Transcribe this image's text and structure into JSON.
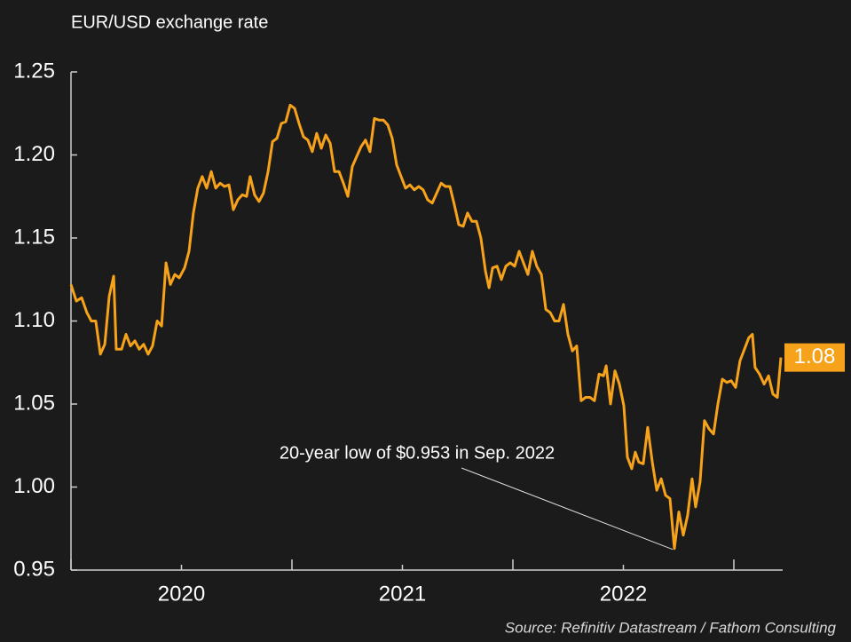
{
  "chart_data": {
    "type": "line",
    "title": "EUR/USD exchange rate",
    "source": "Source: Refinitiv Datastream / Fathom Consulting",
    "annotation": "20-year low of $0.953 in Sep. 2022",
    "end_label": "1.08",
    "color": "#f7a21b",
    "x": [
      2020,
      2020.024,
      2020.048,
      2020.072,
      2020.092,
      2020.112,
      2020.133,
      2020.153,
      2020.173,
      2020.193,
      2020.205,
      2020.229,
      2020.249,
      2020.269,
      2020.289,
      2020.309,
      2020.329,
      2020.349,
      2020.369,
      2020.39,
      2020.41,
      2020.43,
      2020.45,
      2020.47,
      2020.49,
      2020.514,
      2020.534,
      2020.554,
      2020.574,
      2020.594,
      2020.614,
      2020.635,
      2020.655,
      2020.675,
      2020.695,
      2020.715,
      2020.735,
      2020.755,
      2020.775,
      2020.795,
      2020.811,
      2020.831,
      2020.851,
      2020.871,
      2020.892,
      2020.912,
      2020.932,
      2020.952,
      2020.972,
      2020.992,
      2021.012,
      2021.032,
      2021.052,
      2021.072,
      2021.092,
      2021.112,
      2021.133,
      2021.153,
      2021.173,
      2021.193,
      2021.213,
      2021.233,
      2021.253,
      2021.273,
      2021.293,
      2021.313,
      2021.333,
      2021.353,
      2021.373,
      2021.394,
      2021.414,
      2021.434,
      2021.454,
      2021.474,
      2021.494,
      2021.514,
      2021.534,
      2021.554,
      2021.574,
      2021.594,
      2021.614,
      2021.635,
      2021.655,
      2021.675,
      2021.695,
      2021.715,
      2021.735,
      2021.755,
      2021.775,
      2021.795,
      2021.815,
      2021.835,
      2021.855,
      2021.876,
      2021.892,
      2021.908,
      2021.928,
      2021.948,
      2021.968,
      2021.988,
      2022.008,
      2022.028,
      2022.048,
      2022.068,
      2022.088,
      2022.108,
      2022.129,
      2022.149,
      2022.169,
      2022.189,
      2022.209,
      2022.229,
      2022.249,
      2022.269,
      2022.289,
      2022.309,
      2022.329,
      2022.349,
      2022.369,
      2022.39,
      2022.41,
      2022.422,
      2022.442,
      2022.462,
      2022.482,
      2022.502,
      2022.518,
      2022.538,
      2022.554,
      2022.57,
      2022.59,
      2022.61,
      2022.631,
      2022.651,
      2022.671,
      2022.691,
      2022.711,
      2022.731,
      2022.751,
      2022.771,
      2022.791,
      2022.811,
      2022.827,
      2022.847,
      2022.867,
      2022.888,
      2022.908,
      2022.928,
      2022.948,
      2022.968,
      2022.988,
      2023.008,
      2023.028,
      2023.048,
      2023.068,
      2023.084,
      2023.096,
      2023.116,
      2023.137,
      2023.157,
      2023.177,
      2023.197,
      2023.213
    ],
    "values": [
      1.122,
      1.112,
      1.114,
      1.105,
      1.1,
      1.1,
      1.08,
      1.086,
      1.115,
      1.127,
      1.083,
      1.083,
      1.092,
      1.085,
      1.088,
      1.083,
      1.086,
      1.08,
      1.085,
      1.1,
      1.097,
      1.135,
      1.122,
      1.128,
      1.126,
      1.132,
      1.142,
      1.165,
      1.18,
      1.187,
      1.18,
      1.19,
      1.18,
      1.183,
      1.181,
      1.182,
      1.167,
      1.173,
      1.176,
      1.175,
      1.187,
      1.176,
      1.172,
      1.177,
      1.19,
      1.208,
      1.21,
      1.219,
      1.22,
      1.23,
      1.228,
      1.219,
      1.211,
      1.209,
      1.202,
      1.213,
      1.204,
      1.212,
      1.207,
      1.19,
      1.19,
      1.183,
      1.175,
      1.193,
      1.199,
      1.205,
      1.209,
      1.202,
      1.222,
      1.221,
      1.221,
      1.218,
      1.21,
      1.194,
      1.187,
      1.18,
      1.182,
      1.179,
      1.181,
      1.179,
      1.173,
      1.171,
      1.177,
      1.183,
      1.181,
      1.181,
      1.17,
      1.158,
      1.157,
      1.165,
      1.16,
      1.16,
      1.15,
      1.13,
      1.12,
      1.132,
      1.133,
      1.125,
      1.133,
      1.135,
      1.133,
      1.142,
      1.135,
      1.128,
      1.142,
      1.133,
      1.128,
      1.107,
      1.105,
      1.1,
      1.1,
      1.11,
      1.092,
      1.082,
      1.085,
      1.052,
      1.054,
      1.054,
      1.052,
      1.068,
      1.067,
      1.073,
      1.05,
      1.07,
      1.062,
      1.049,
      1.018,
      1.011,
      1.021,
      1.015,
      1.014,
      1.036,
      1.015,
      0.998,
      1.005,
      0.995,
      0.993,
      0.963,
      0.985,
      0.971,
      0.983,
      1.005,
      0.988,
      1.003,
      1.04,
      1.035,
      1.032,
      1.05,
      1.065,
      1.063,
      1.064,
      1.06,
      1.076,
      1.083,
      1.09,
      1.092,
      1.072,
      1.068,
      1.062,
      1.067,
      1.056,
      1.054,
      1.078
    ],
    "xlim": [
      2020,
      2023.221
    ],
    "xticks": [
      {
        "value": 2020.5,
        "label": "2020"
      },
      {
        "value": 2021.5,
        "label": "2021"
      },
      {
        "value": 2022.5,
        "label": "2022"
      }
    ],
    "xminor": [
      2020,
      2021,
      2022,
      2023
    ],
    "ylim": [
      0.95,
      1.25
    ],
    "yticks": [
      {
        "value": 0.95,
        "label": "0.95"
      },
      {
        "value": 1.0,
        "label": "1.00"
      },
      {
        "value": 1.05,
        "label": "1.05"
      },
      {
        "value": 1.1,
        "label": "1.10"
      },
      {
        "value": 1.15,
        "label": "1.15"
      },
      {
        "value": 1.2,
        "label": "1.20"
      },
      {
        "value": 1.25,
        "label": "1.25"
      }
    ],
    "grid": false
  }
}
